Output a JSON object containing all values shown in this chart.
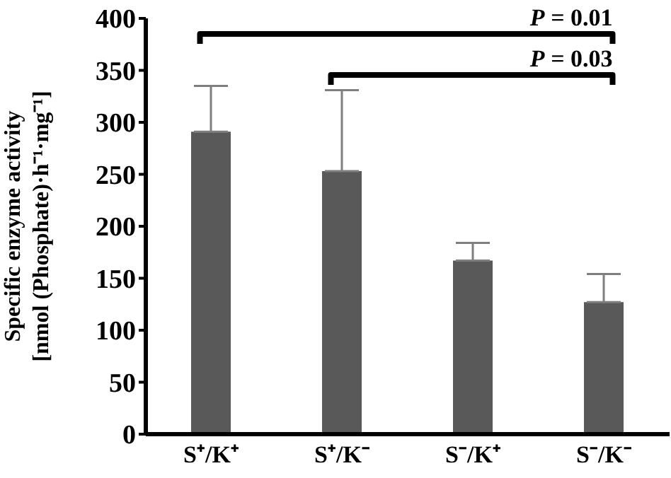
{
  "chart_data": {
    "type": "bar",
    "ylabel": "Specific enzyme activity\n[nmol (Phosphate)·h⁻¹·mg⁻¹]",
    "categories": [
      "S⁺/K⁺",
      "S⁺/K⁻",
      "S⁻/K⁺",
      "S⁻/K⁻"
    ],
    "values": [
      291,
      253,
      167,
      127
    ],
    "errors": [
      [
        291,
        335
      ],
      [
        253,
        331
      ],
      [
        167,
        184
      ],
      [
        127,
        154
      ]
    ],
    "color": "#595959",
    "ylim": [
      0,
      400
    ],
    "yticks": [
      0,
      50,
      100,
      150,
      200,
      250,
      300,
      350,
      400
    ],
    "grid": false,
    "annotations": [
      "P = 0.01",
      "P = 0.03"
    ]
  }
}
